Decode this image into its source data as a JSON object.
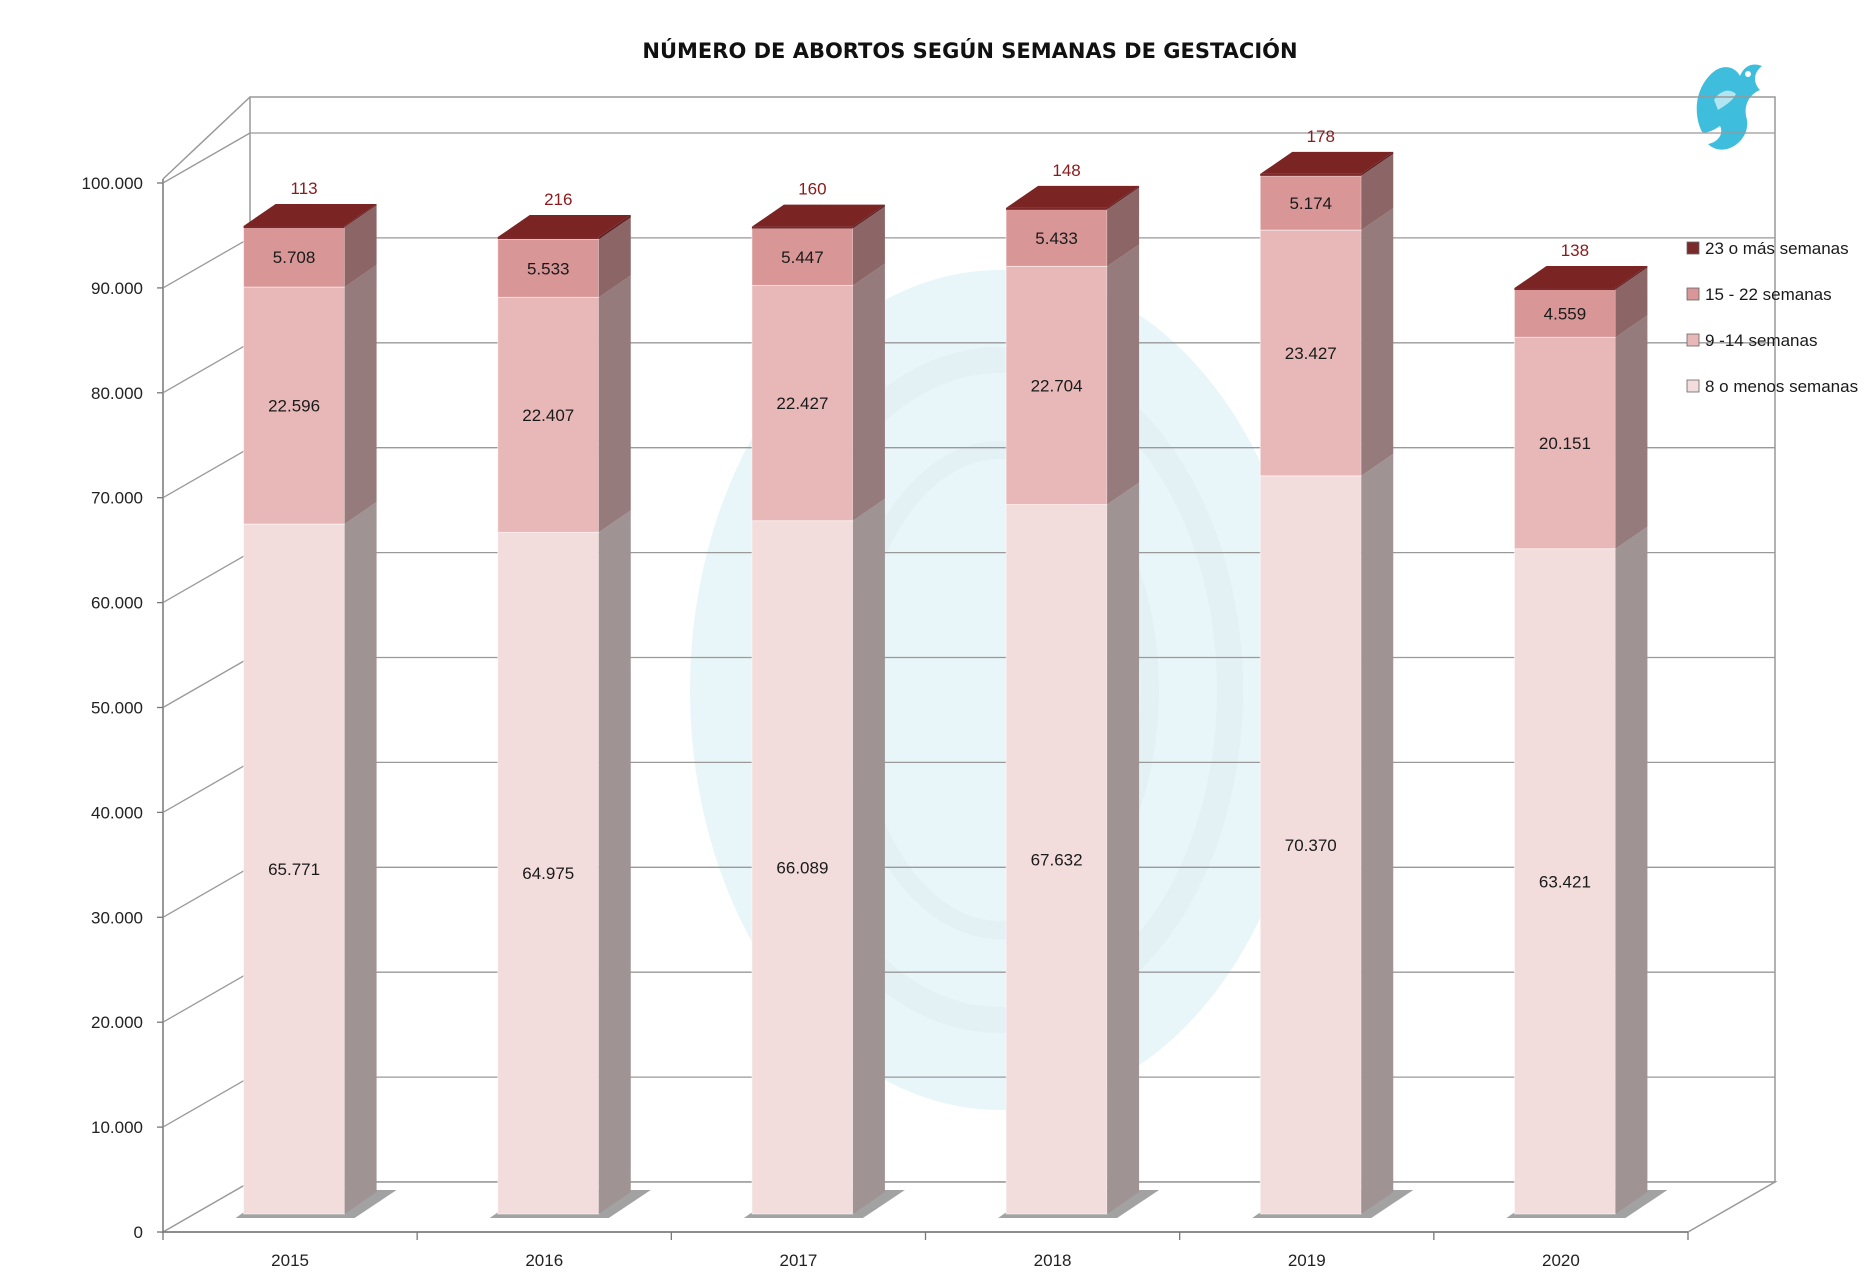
{
  "chart_data": {
    "type": "bar",
    "stacked": true,
    "three_d": true,
    "title": "NÚMERO DE ABORTOS SEGÚN SEMANAS DE GESTACIÓN",
    "categories": [
      "2015",
      "2016",
      "2017",
      "2018",
      "2019",
      "2020"
    ],
    "series": [
      {
        "name": "8 o menos semanas",
        "values": [
          65771,
          64975,
          66089,
          67632,
          70370,
          63421
        ],
        "labels": [
          "65.771",
          "64.975",
          "66.089",
          "67.632",
          "70.370",
          "63.421"
        ],
        "color": "#f2dcdc",
        "side": "#a09394",
        "top": "#f5e3e3"
      },
      {
        "name": "9 -14 semanas",
        "values": [
          22596,
          22407,
          22427,
          22704,
          23427,
          20151
        ],
        "labels": [
          "22.596",
          "22.407",
          "22.427",
          "22.704",
          "23.427",
          "20.151"
        ],
        "color": "#e8b8b8",
        "side": "#957b7c",
        "top": "#edc6c6"
      },
      {
        "name": "15 - 22 semanas",
        "values": [
          5708,
          5533,
          5447,
          5433,
          5174,
          4559
        ],
        "labels": [
          "5.708",
          "5.533",
          "5.447",
          "5.433",
          "5.174",
          "4.559"
        ],
        "color": "#d99697",
        "side": "#8c6566",
        "top": "#e2a9a9"
      },
      {
        "name": "23 o más semanas",
        "values": [
          113,
          216,
          160,
          148,
          178,
          138
        ],
        "labels": [
          "113",
          "216",
          "160",
          "148",
          "178",
          "138"
        ],
        "color": "#7a2a2a",
        "side": "#5e1f1f",
        "top": "#7b2424"
      }
    ],
    "yticks": [
      "0",
      "10.000",
      "20.000",
      "30.000",
      "40.000",
      "50.000",
      "60.000",
      "70.000",
      "80.000",
      "90.000",
      "100.000"
    ],
    "ylim": [
      0,
      100000
    ],
    "grid": true,
    "legend": "right"
  }
}
